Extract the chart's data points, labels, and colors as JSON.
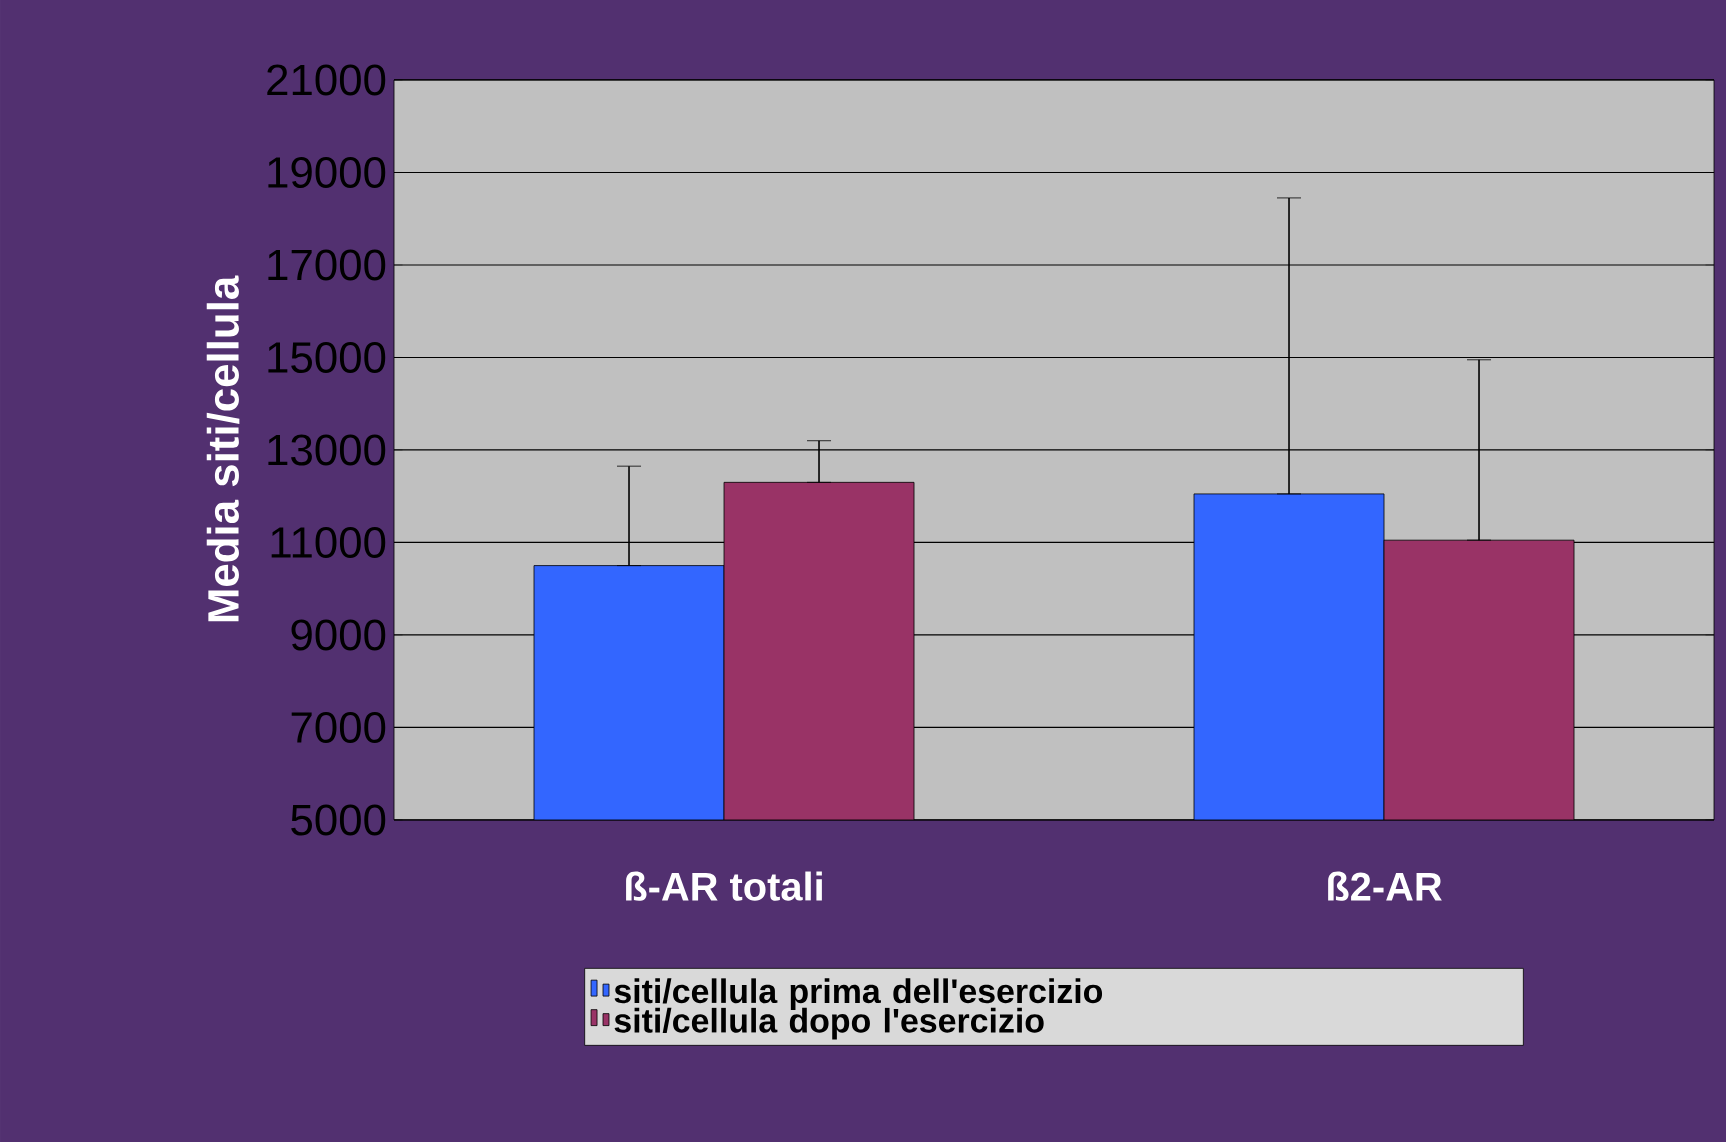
{
  "chart_data": {
    "type": "bar",
    "ylabel": "Media siti/cellula",
    "categories": [
      "ß-AR totali",
      "ß2-AR"
    ],
    "series": [
      {
        "name": "siti/cellula prima dell'esercizio",
        "color": "#3366ff",
        "values": [
          10500,
          12050
        ],
        "errors": [
          [
            10500,
            12650
          ],
          [
            12050,
            18450
          ]
        ]
      },
      {
        "name": "siti/cellula dopo l'esercizio",
        "color": "#993366",
        "values": [
          12300,
          11050
        ],
        "errors": [
          [
            12300,
            13200
          ],
          [
            11050,
            14950
          ]
        ]
      }
    ],
    "ylim": [
      5000,
      21000
    ],
    "yticks": [
      5000,
      7000,
      9000,
      11000,
      13000,
      15000,
      17000,
      19000,
      21000
    ],
    "grid": "y",
    "legend": "bottom"
  }
}
